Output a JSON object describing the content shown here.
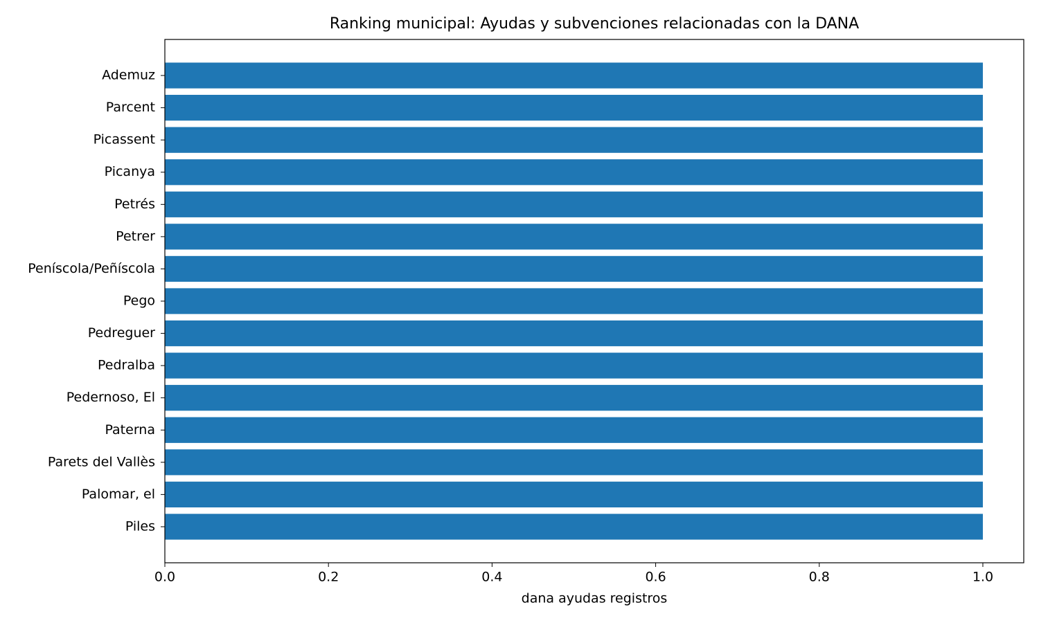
{
  "chart_data": {
    "type": "barh",
    "title": "Ranking municipal: Ayudas y subvenciones relacionadas con la DANA",
    "xlabel": "dana ayudas registros",
    "categories": [
      "Ademuz",
      "Parcent",
      "Picassent",
      "Picanya",
      "Petrés",
      "Petrer",
      "Peníscola/Peñíscola",
      "Pego",
      "Pedreguer",
      "Pedralba",
      "Pedernoso, El",
      "Paterna",
      "Parets del Vallès",
      "Palomar, el",
      "Piles"
    ],
    "values": [
      1,
      1,
      1,
      1,
      1,
      1,
      1,
      1,
      1,
      1,
      1,
      1,
      1,
      1,
      1
    ],
    "color": "#1f77b4",
    "xlim": [
      0,
      1.05
    ],
    "xticks": [
      {
        "value": 0,
        "label": "0.0"
      },
      0.2,
      0.4,
      0.6,
      0.8,
      {
        "value": 1,
        "label": "1.0"
      }
    ]
  }
}
